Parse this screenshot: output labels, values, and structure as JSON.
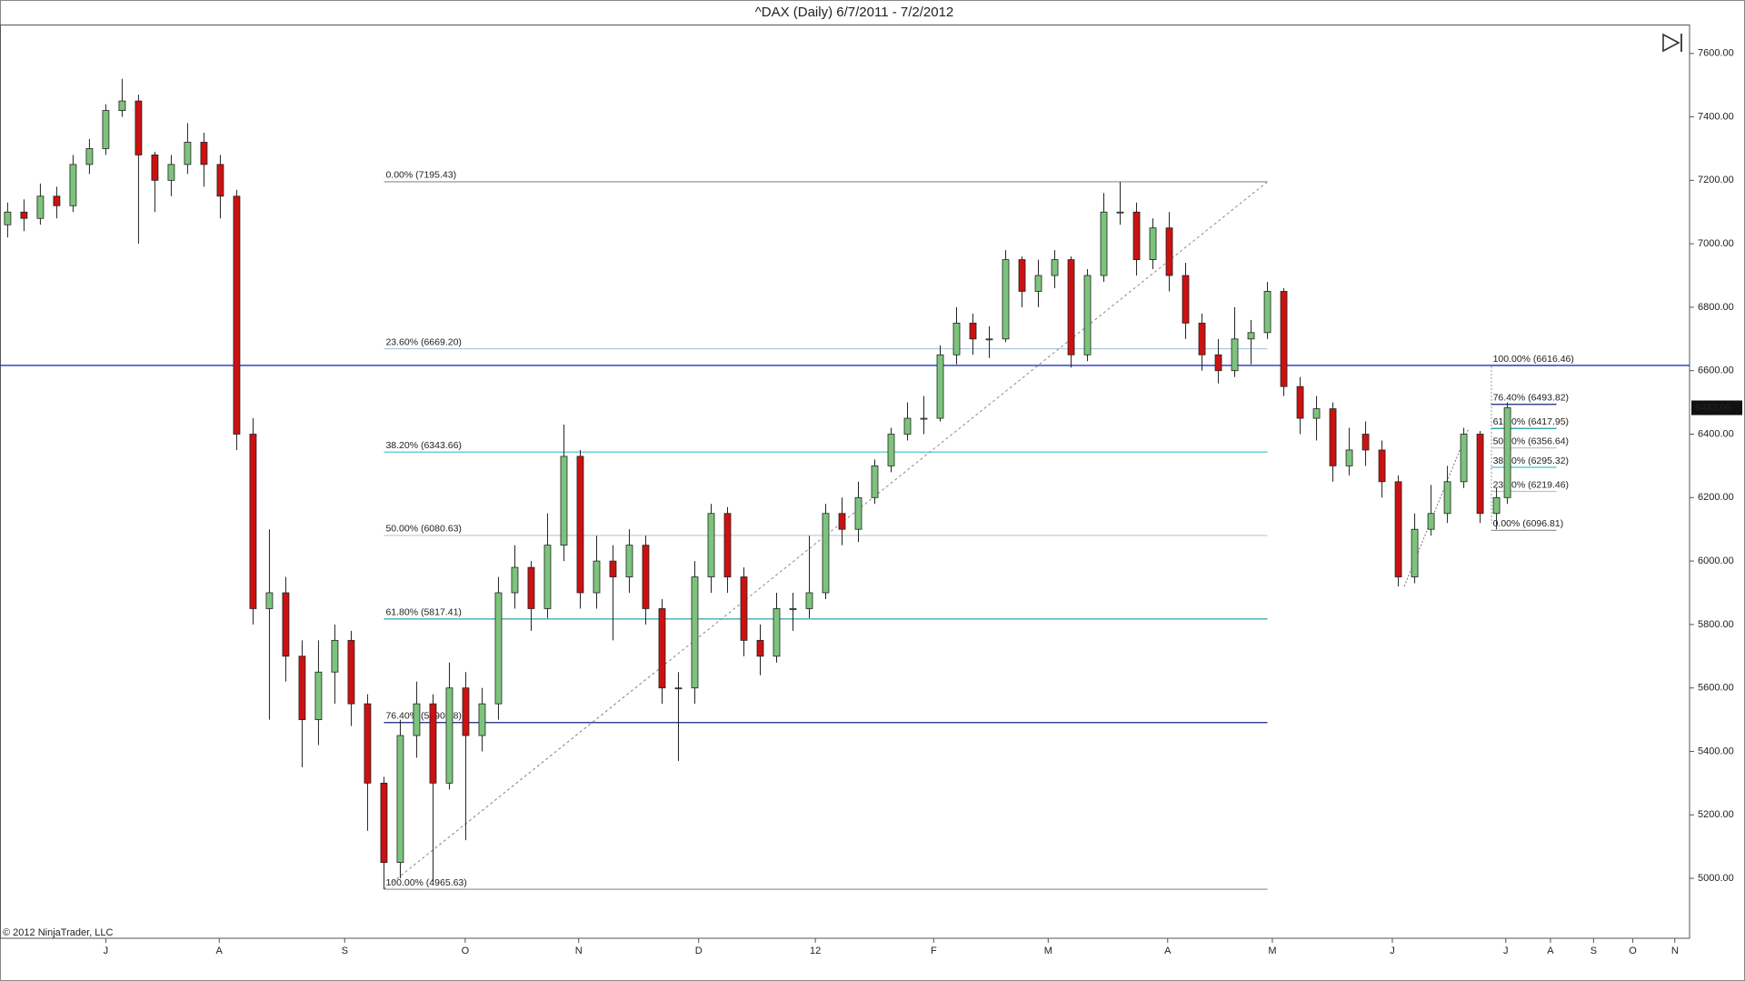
{
  "chart_data": {
    "type": "candlestick",
    "title": "^DAX (Daily)  6/7/2011 - 7/2/2012",
    "copyright": "© 2012 NinjaTrader, LLC",
    "up_color": "#7cc47c",
    "down_color": "#cc1111",
    "outline_color": "#222222",
    "xlim": [
      -1.4,
      308.4
    ],
    "ylim": [
      4811,
      7691
    ],
    "xticks": [
      {
        "value": 18,
        "label": "J"
      },
      {
        "value": 38.8,
        "label": "A"
      },
      {
        "value": 61.8,
        "label": "S"
      },
      {
        "value": 83.9,
        "label": "O"
      },
      {
        "value": 104.7,
        "label": "N"
      },
      {
        "value": 126.7,
        "label": "D"
      },
      {
        "value": 148.1,
        "label": "12"
      },
      {
        "value": 169.8,
        "label": "F"
      },
      {
        "value": 190.8,
        "label": "M"
      },
      {
        "value": 212.7,
        "label": "A"
      },
      {
        "value": 231.9,
        "label": "M"
      },
      {
        "value": 253.9,
        "label": "J"
      },
      {
        "value": 274.7,
        "label": "J"
      },
      {
        "value": 282.9,
        "label": "A"
      },
      {
        "value": 290.8,
        "label": "S"
      },
      {
        "value": 298,
        "label": "O"
      },
      {
        "value": 305.7,
        "label": "N"
      }
    ],
    "yticks": [
      {
        "value": 5000,
        "label": "5000.00"
      },
      {
        "value": 5200,
        "label": "5200.00"
      },
      {
        "value": 5400,
        "label": "5400.00"
      },
      {
        "value": 5600,
        "label": "5600.00"
      },
      {
        "value": 5800,
        "label": "5800.00"
      },
      {
        "value": 6000,
        "label": "6000.00"
      },
      {
        "value": 6200,
        "label": "6200.00"
      },
      {
        "value": 6400,
        "label": "6400.00"
      },
      {
        "value": 6600,
        "label": "6600.00"
      },
      {
        "value": 6800,
        "label": "6800.00"
      },
      {
        "value": 7000,
        "label": "7000.00"
      },
      {
        "value": 7200,
        "label": "7200.00"
      },
      {
        "value": 7400,
        "label": "7400.00"
      },
      {
        "value": 7600,
        "label": "7600.00"
      }
    ],
    "x": [
      0,
      3,
      6,
      9,
      12,
      15,
      18,
      21,
      24,
      27,
      30,
      33,
      36,
      39,
      42,
      45,
      48,
      51,
      54,
      57,
      60,
      63,
      66,
      69,
      72,
      75,
      78,
      81,
      84,
      87,
      90,
      93,
      96,
      99,
      102,
      105,
      108,
      111,
      114,
      117,
      120,
      123,
      126,
      129,
      132,
      135,
      138,
      141,
      144,
      147,
      150,
      153,
      156,
      159,
      162,
      165,
      168,
      171,
      174,
      177,
      180,
      183,
      186,
      189,
      192,
      195,
      198,
      201,
      204,
      207,
      210,
      213,
      216,
      219,
      222,
      225,
      228,
      231,
      234,
      237,
      240,
      243,
      246,
      249,
      252,
      255,
      258,
      261,
      264,
      267,
      270,
      273,
      275
    ],
    "open": [
      7060,
      7100,
      7080,
      7150,
      7120,
      7250,
      7300,
      7420,
      7450,
      7280,
      7200,
      7250,
      7320,
      7250,
      7150,
      6400,
      5850,
      5900,
      5700,
      5500,
      5650,
      5750,
      5550,
      5300,
      5050,
      5450,
      5550,
      5300,
      5600,
      5450,
      5550,
      5900,
      5980,
      5850,
      6050,
      6330,
      5900,
      6000,
      5950,
      6050,
      5850,
      5600,
      5600,
      5950,
      6150,
      5950,
      5750,
      5700,
      5850,
      5850,
      5900,
      6150,
      6100,
      6200,
      6300,
      6400,
      6450,
      6450,
      6650,
      6750,
      6700,
      6700,
      6950,
      6850,
      6900,
      6950,
      6650,
      6900,
      7100,
      7100,
      6950,
      7050,
      6900,
      6750,
      6650,
      6600,
      6700,
      6720,
      6850,
      6550,
      6450,
      6480,
      6300,
      6400,
      6350,
      6250,
      5950,
      6100,
      6150,
      6250,
      6400,
      6150,
      6200
    ],
    "high": [
      7130,
      7140,
      7190,
      7180,
      7280,
      7330,
      7440,
      7520,
      7470,
      7290,
      7280,
      7380,
      7350,
      7280,
      7170,
      6450,
      6100,
      5950,
      5750,
      5750,
      5800,
      5780,
      5580,
      5320,
      5500,
      5620,
      5580,
      5680,
      5650,
      5600,
      5950,
      6050,
      6000,
      6150,
      6430,
      6350,
      6080,
      6050,
      6100,
      6080,
      5880,
      5650,
      6000,
      6180,
      6170,
      5980,
      5800,
      5900,
      5900,
      6080,
      6180,
      6200,
      6250,
      6320,
      6420,
      6500,
      6520,
      6680,
      6800,
      6780,
      6740,
      6980,
      6960,
      6950,
      6980,
      6960,
      6920,
      7160,
      7195,
      7130,
      7080,
      7100,
      6940,
      6780,
      6700,
      6800,
      6760,
      6880,
      6860,
      6580,
      6520,
      6500,
      6420,
      6440,
      6380,
      6270,
      6150,
      6240,
      6300,
      6420,
      6410,
      6230,
      6500
    ],
    "low": [
      7020,
      7040,
      7060,
      7080,
      7100,
      7220,
      7280,
      7400,
      7000,
      7100,
      7150,
      7220,
      7180,
      7080,
      6350,
      5800,
      5500,
      5620,
      5350,
      5420,
      5550,
      5480,
      5150,
      4966,
      5000,
      5380,
      4990,
      5280,
      5120,
      5400,
      5500,
      5850,
      5780,
      5820,
      6000,
      5850,
      5850,
      5750,
      5900,
      5800,
      5550,
      5370,
      5550,
      5900,
      5900,
      5700,
      5640,
      5680,
      5780,
      5820,
      5880,
      6050,
      6060,
      6180,
      6280,
      6380,
      6400,
      6440,
      6620,
      6650,
      6640,
      6690,
      6800,
      6800,
      6860,
      6610,
      6630,
      6880,
      7060,
      6900,
      6920,
      6850,
      6700,
      6600,
      6560,
      6580,
      6620,
      6700,
      6520,
      6400,
      6380,
      6250,
      6270,
      6300,
      6200,
      5920,
      5930,
      6080,
      6120,
      6230,
      6120,
      6100,
      6180
    ],
    "close": [
      7100,
      7080,
      7150,
      7120,
      7250,
      7300,
      7420,
      7450,
      7280,
      7200,
      7250,
      7320,
      7250,
      7150,
      6400,
      5850,
      5900,
      5700,
      5500,
      5650,
      5750,
      5550,
      5300,
      5050,
      5450,
      5550,
      5300,
      5600,
      5450,
      5550,
      5900,
      5980,
      5850,
      6050,
      6330,
      5900,
      6000,
      5950,
      6050,
      5850,
      5600,
      5600,
      5950,
      6150,
      5950,
      5750,
      5700,
      5850,
      5850,
      5900,
      6150,
      6100,
      6200,
      6300,
      6400,
      6450,
      6450,
      6650,
      6750,
      6700,
      6700,
      6950,
      6850,
      6900,
      6950,
      6650,
      6900,
      7100,
      7100,
      6950,
      7050,
      6900,
      6750,
      6650,
      6600,
      6700,
      6720,
      6850,
      6550,
      6450,
      6480,
      6300,
      6350,
      6350,
      6250,
      5950,
      6100,
      6150,
      6250,
      6400,
      6150,
      6200,
      6483.06
    ],
    "last_price": {
      "value": 6483.06,
      "label": "6483.06"
    },
    "horizontal_line": {
      "color": "#2233cc"
    },
    "fib_retracements": [
      {
        "start_x": 69,
        "end_x": 231,
        "diagonal": true,
        "levels": [
          {
            "value": 7195.43,
            "label": "0.00% (7195.43)",
            "color": "#8c8c8c"
          },
          {
            "value": 6669.2,
            "label": "23.60% (6669.20)",
            "color": "#a9c6df"
          },
          {
            "value": 6343.66,
            "label": "38.20% (6343.66)",
            "color": "#3cc4c4"
          },
          {
            "value": 6080.63,
            "label": "50.00% (6080.63)",
            "color": "#c4c4c4"
          },
          {
            "value": 5817.41,
            "label": "61.80% (5817.41)",
            "color": "#1a9a9a"
          },
          {
            "value": 5490.88,
            "label": "76.40% (5490.88)",
            "color": "#1a237e"
          },
          {
            "value": 4965.63,
            "label": "100.00% (4965.63)",
            "color": "#8c8c8c"
          }
        ]
      },
      {
        "start_x": 272,
        "end_x": 284,
        "diagonal": false,
        "levels": [
          {
            "value": 6616.46,
            "label": "100.00% (6616.46)",
            "color": "#8c8c8c"
          },
          {
            "value": 6493.82,
            "label": "76.40% (6493.82)",
            "color": "#1a237e"
          },
          {
            "value": 6417.95,
            "label": "61.80% (6417.95)",
            "color": "#1a9a9a"
          },
          {
            "value": 6356.64,
            "label": "50.00% (6356.64)",
            "color": "#c4c4c4"
          },
          {
            "value": 6295.32,
            "label": "38.20% (6295.32)",
            "color": "#3cc4c4"
          },
          {
            "value": 6219.46,
            "label": "23.60% (6219.46)",
            "color": "#a9c6df"
          },
          {
            "value": 6096.81,
            "label": "0.00% (6096.81)",
            "color": "#8c8c8c"
          }
        ]
      }
    ]
  }
}
